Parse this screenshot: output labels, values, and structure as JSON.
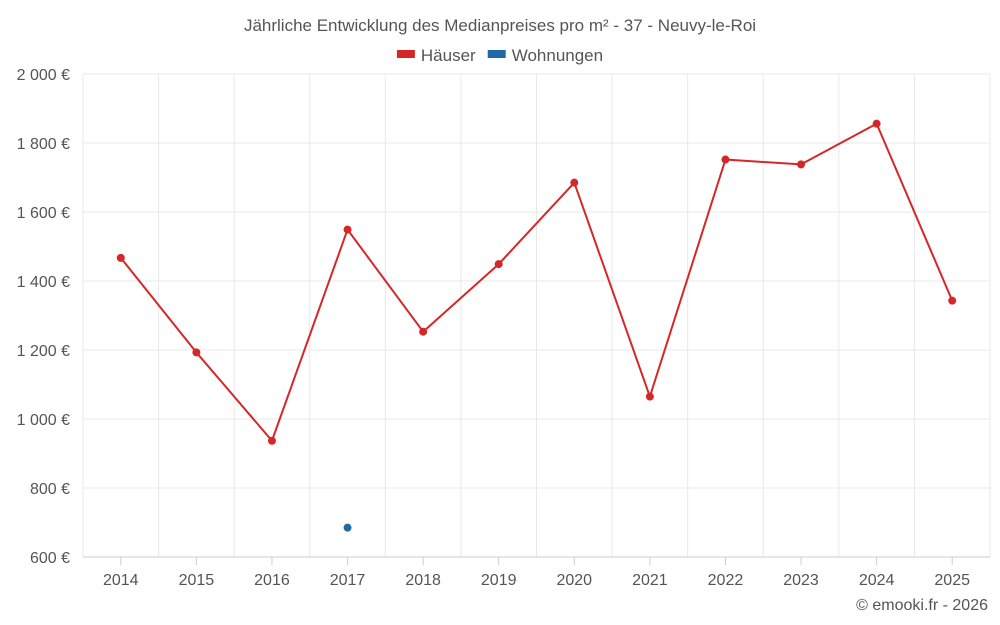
{
  "chart_data": {
    "type": "line",
    "title": "Jährliche Entwicklung des Medianpreises pro m² - 37 - Neuvy-le-Roi",
    "categories": [
      "2014",
      "2015",
      "2016",
      "2017",
      "2018",
      "2019",
      "2020",
      "2021",
      "2022",
      "2023",
      "2024",
      "2025"
    ],
    "series": [
      {
        "name": "Häuser",
        "color": "#d62728",
        "values": [
          1467,
          1193,
          937,
          1549,
          1253,
          1449,
          1685,
          1065,
          1752,
          1738,
          1856,
          1343
        ]
      },
      {
        "name": "Wohnungen",
        "color": "#1f6aa5",
        "values": [
          null,
          null,
          null,
          685,
          null,
          null,
          null,
          null,
          null,
          null,
          null,
          null
        ]
      }
    ],
    "ylim": [
      600,
      2000
    ],
    "yticks": [
      600,
      800,
      1000,
      1200,
      1400,
      1600,
      1800,
      2000
    ],
    "ytick_labels": [
      "600 €",
      "800 €",
      "1 000 €",
      "1 200 €",
      "1 400 €",
      "1 600 €",
      "1 800 €",
      "2 000 €"
    ],
    "grid": true,
    "legend_position": "top-center"
  },
  "credit": "© emooki.fr - 2026"
}
